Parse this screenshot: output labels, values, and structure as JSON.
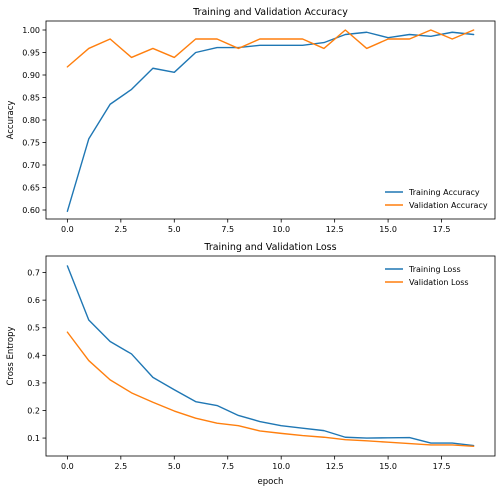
{
  "chart_data": [
    {
      "type": "line",
      "title": "Training and Validation Accuracy",
      "xlabel": "",
      "ylabel": "Accuracy",
      "xlim": [
        -1,
        20
      ],
      "ylim": [
        0.58,
        1.02
      ],
      "xticks": [
        0.0,
        2.5,
        5.0,
        7.5,
        10.0,
        12.5,
        15.0,
        17.5
      ],
      "xtick_labels": [
        "0.0",
        "2.5",
        "5.0",
        "7.5",
        "10.0",
        "12.5",
        "15.0",
        "17.5"
      ],
      "yticks": [
        0.6,
        0.65,
        0.7,
        0.75,
        0.8,
        0.85,
        0.9,
        0.95,
        1.0
      ],
      "ytick_labels": [
        "0.60",
        "0.65",
        "0.70",
        "0.75",
        "0.80",
        "0.85",
        "0.90",
        "0.95",
        "1.00"
      ],
      "legend_position": "lower-right",
      "grid": false,
      "x": [
        0,
        1,
        2,
        3,
        4,
        5,
        6,
        7,
        8,
        9,
        10,
        11,
        12,
        13,
        14,
        15,
        16,
        17,
        18,
        19
      ],
      "series": [
        {
          "name": "Training Accuracy",
          "color": "#1f77b4",
          "values": [
            0.597,
            0.758,
            0.835,
            0.868,
            0.915,
            0.906,
            0.95,
            0.961,
            0.961,
            0.966,
            0.966,
            0.966,
            0.972,
            0.99,
            0.995,
            0.983,
            0.99,
            0.986,
            0.995,
            0.99
          ]
        },
        {
          "name": "Validation Accuracy",
          "color": "#ff7f0e",
          "values": [
            0.918,
            0.959,
            0.98,
            0.939,
            0.959,
            0.939,
            0.98,
            0.98,
            0.959,
            0.98,
            0.98,
            0.98,
            0.959,
            1.0,
            0.959,
            0.98,
            0.98,
            1.0,
            0.98,
            1.0
          ]
        }
      ]
    },
    {
      "type": "line",
      "title": "Training and Validation Loss",
      "xlabel": "epoch",
      "ylabel": "Cross Entropy",
      "xlim": [
        -1,
        20
      ],
      "ylim": [
        0.035,
        0.76
      ],
      "xticks": [
        0.0,
        2.5,
        5.0,
        7.5,
        10.0,
        12.5,
        15.0,
        17.5
      ],
      "xtick_labels": [
        "0.0",
        "2.5",
        "5.0",
        "7.5",
        "10.0",
        "12.5",
        "15.0",
        "17.5"
      ],
      "yticks": [
        0.1,
        0.2,
        0.3,
        0.4,
        0.5,
        0.6,
        0.7
      ],
      "ytick_labels": [
        "0.1",
        "0.2",
        "0.3",
        "0.4",
        "0.5",
        "0.6",
        "0.7"
      ],
      "legend_position": "upper-right",
      "grid": false,
      "x": [
        0,
        1,
        2,
        3,
        4,
        5,
        6,
        7,
        8,
        9,
        10,
        11,
        12,
        13,
        14,
        15,
        16,
        17,
        18,
        19
      ],
      "series": [
        {
          "name": "Training Loss",
          "color": "#1f77b4",
          "values": [
            0.724,
            0.528,
            0.45,
            0.405,
            0.32,
            0.275,
            0.232,
            0.218,
            0.182,
            0.16,
            0.145,
            0.136,
            0.127,
            0.103,
            0.1,
            0.101,
            0.102,
            0.082,
            0.082,
            0.073
          ]
        },
        {
          "name": "Validation Loss",
          "color": "#ff7f0e",
          "values": [
            0.484,
            0.381,
            0.311,
            0.264,
            0.23,
            0.198,
            0.172,
            0.154,
            0.145,
            0.126,
            0.117,
            0.109,
            0.103,
            0.094,
            0.09,
            0.085,
            0.08,
            0.075,
            0.075,
            0.07
          ]
        }
      ]
    }
  ]
}
